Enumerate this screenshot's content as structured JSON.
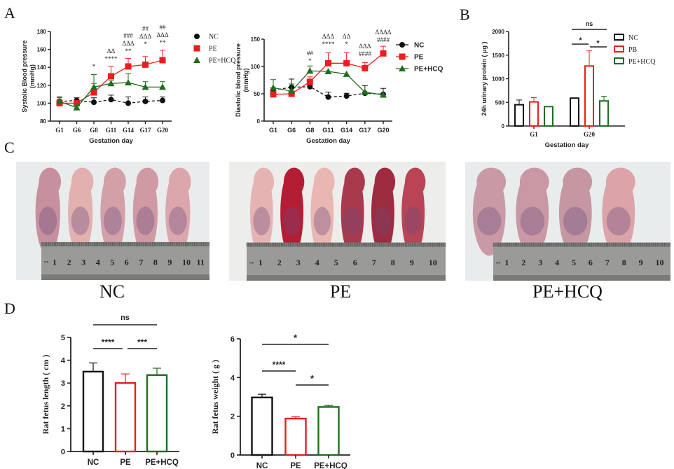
{
  "panels": {
    "A": "A",
    "B": "B",
    "C": "C",
    "D": "D"
  },
  "colors": {
    "NC": "#111111",
    "PE": "#ee1c1c",
    "PE+HCQ": "#1e6e1e"
  },
  "chart_data": [
    {
      "id": "systolic",
      "type": "line",
      "xlabel": "Gestation day",
      "ylabel": "Systolic Blood pressure (mmHg)",
      "ylabel_lines": [
        "Systolic Blood pressure",
        "(mmHg)"
      ],
      "categories": [
        "G1",
        "G6",
        "G8",
        "G11",
        "G14",
        "G17",
        "G20"
      ],
      "ylim": [
        80,
        180
      ],
      "yticks": [
        80,
        100,
        120,
        140,
        160,
        180
      ],
      "series": [
        {
          "name": "NC",
          "marker": "circle",
          "values": [
            102,
            103,
            101,
            104,
            100,
            102,
            103
          ],
          "err": [
            5,
            3,
            5,
            5,
            7,
            5,
            4
          ]
        },
        {
          "name": "PE",
          "marker": "square",
          "values": [
            100,
            100,
            112,
            130,
            141,
            143,
            148
          ],
          "err": [
            4,
            3,
            10,
            11,
            9,
            9,
            11
          ]
        },
        {
          "name": "PE+HCQ",
          "marker": "triangle",
          "values": [
            102,
            95,
            118,
            122,
            123,
            118,
            118
          ],
          "err": [
            4,
            4,
            14,
            3,
            10,
            6,
            6
          ]
        }
      ],
      "annotations": [
        {
          "x": "G8",
          "lines": [
            "*"
          ]
        },
        {
          "x": "G11",
          "lines": [
            "ΔΔ",
            "****"
          ]
        },
        {
          "x": "G14",
          "lines": [
            "###",
            "ΔΔΔ",
            "**"
          ]
        },
        {
          "x": "G17",
          "lines": [
            "##",
            "ΔΔΔ",
            "*"
          ]
        },
        {
          "x": "G20",
          "lines": [
            "##",
            "ΔΔΔ",
            "**"
          ]
        }
      ],
      "legend": [
        "NC",
        "PE",
        "PE+HCQ"
      ],
      "legend_position": "right"
    },
    {
      "id": "diastolic",
      "type": "line",
      "xlabel": "Gestation day",
      "ylabel": "Diastolic blood pressure (mmHg)",
      "ylabel_lines": [
        "Diastolic blood pressure",
        "(mmHg)"
      ],
      "categories": [
        "G1",
        "G6",
        "G8",
        "G11",
        "G14",
        "G17",
        "G20"
      ],
      "ylim": [
        0,
        150
      ],
      "yticks": [
        0,
        50,
        100,
        150
      ],
      "series": [
        {
          "name": "NC",
          "marker": "circle",
          "values": [
            57,
            62,
            63,
            44,
            46,
            51,
            49
          ],
          "err": [
            4,
            15,
            0,
            9,
            5,
            14,
            11
          ]
        },
        {
          "name": "PE",
          "marker": "square",
          "values": [
            49,
            50,
            72,
            106,
            106,
            97,
            124
          ],
          "err": [
            0,
            3,
            9,
            19,
            19,
            10,
            13
          ]
        },
        {
          "name": "PE+HCQ",
          "marker": "triangle",
          "values": [
            61,
            55,
            92,
            91,
            86,
            53,
            48
          ],
          "err": [
            15,
            13,
            9,
            0,
            0,
            0,
            0
          ]
        }
      ],
      "annotations": [
        {
          "x": "G8",
          "lines": [
            "##",
            "*"
          ]
        },
        {
          "x": "G11",
          "lines": [
            "ΔΔΔ",
            "****"
          ]
        },
        {
          "x": "G14",
          "lines": [
            "ΔΔ",
            "*"
          ]
        },
        {
          "x": "G17",
          "lines": [
            "ΔΔΔ",
            "####"
          ]
        },
        {
          "x": "G20",
          "lines": [
            "ΔΔΔΔ",
            "####"
          ]
        }
      ],
      "legend": [
        "NC",
        "PE",
        "PE+HCQ"
      ],
      "legend_position": "right"
    },
    {
      "id": "urinary",
      "type": "bar",
      "xlabel": "Gestation day",
      "ylabel": "24h urinary protein ( μg )",
      "categories": [
        "G1",
        "G20"
      ],
      "ylim": [
        0,
        2000
      ],
      "yticks": [
        0,
        500,
        1000,
        1500,
        2000
      ],
      "series": [
        {
          "name": "NC",
          "values": [
            450,
            590
          ],
          "err": [
            100,
            0
          ]
        },
        {
          "name": "PB",
          "values": [
            510,
            1270
          ],
          "err": [
            90,
            320
          ]
        },
        {
          "name": "PE+HCQ",
          "values": [
            410,
            530
          ],
          "err": [
            0,
            100
          ]
        }
      ],
      "legend": [
        "NC",
        "PB",
        "PE+HCQ"
      ],
      "legend_position": "right",
      "significance": [
        {
          "from": "NC",
          "to": "PE+HCQ",
          "group": "G20",
          "label": "ns"
        },
        {
          "from": "NC",
          "to": "PB",
          "group": "G20",
          "label": "*"
        },
        {
          "from": "PB",
          "to": "PE+HCQ",
          "group": "G20",
          "label": "*"
        }
      ]
    },
    {
      "id": "length",
      "type": "bar",
      "xlabel": "",
      "ylabel": "Rat fetus length ( cm )",
      "categories": [
        "NC",
        "PE",
        "PE+HCQ"
      ],
      "values": [
        3.5,
        3.0,
        3.35
      ],
      "err": [
        0.38,
        0.4,
        0.3
      ],
      "ylim": [
        0,
        5
      ],
      "yticks": [
        0,
        1,
        2,
        3,
        4,
        5
      ],
      "significance": [
        {
          "from": "NC",
          "to": "PE+HCQ",
          "label": "ns"
        },
        {
          "from": "NC",
          "to": "PE",
          "label": "****"
        },
        {
          "from": "PE",
          "to": "PE+HCQ",
          "label": "***"
        }
      ]
    },
    {
      "id": "weight",
      "type": "bar",
      "xlabel": "",
      "ylabel": "Rat fetus weight ( g )",
      "categories": [
        "NC",
        "PE",
        "PE+HCQ"
      ],
      "values": [
        2.97,
        1.88,
        2.48
      ],
      "err": [
        0.17,
        0.1,
        0.08
      ],
      "ylim": [
        0,
        6
      ],
      "yticks": [
        0,
        2,
        4,
        6
      ],
      "significance": [
        {
          "from": "NC",
          "to": "PE+HCQ",
          "label": "*"
        },
        {
          "from": "NC",
          "to": "PE",
          "label": "****"
        },
        {
          "from": "PE",
          "to": "PE+HCQ",
          "label": "*"
        }
      ]
    }
  ],
  "photos": [
    {
      "caption": "NC",
      "ruler_labels": [
        "1",
        "2",
        "3",
        "4",
        "5",
        "6",
        "7",
        "8",
        "9",
        "10",
        "11"
      ],
      "fetus_count": 5
    },
    {
      "caption": "PE",
      "ruler_labels": [
        "1",
        "2",
        "3",
        "4",
        "5",
        "6",
        "7",
        "8",
        "9",
        "10"
      ],
      "fetus_count": 6
    },
    {
      "caption": "PE+HCQ",
      "ruler_labels": [
        "1",
        "2",
        "3",
        "4",
        "5",
        "6",
        "7",
        "8",
        "9",
        "10"
      ],
      "fetus_count": 4
    }
  ],
  "ruler_unit": "cm"
}
